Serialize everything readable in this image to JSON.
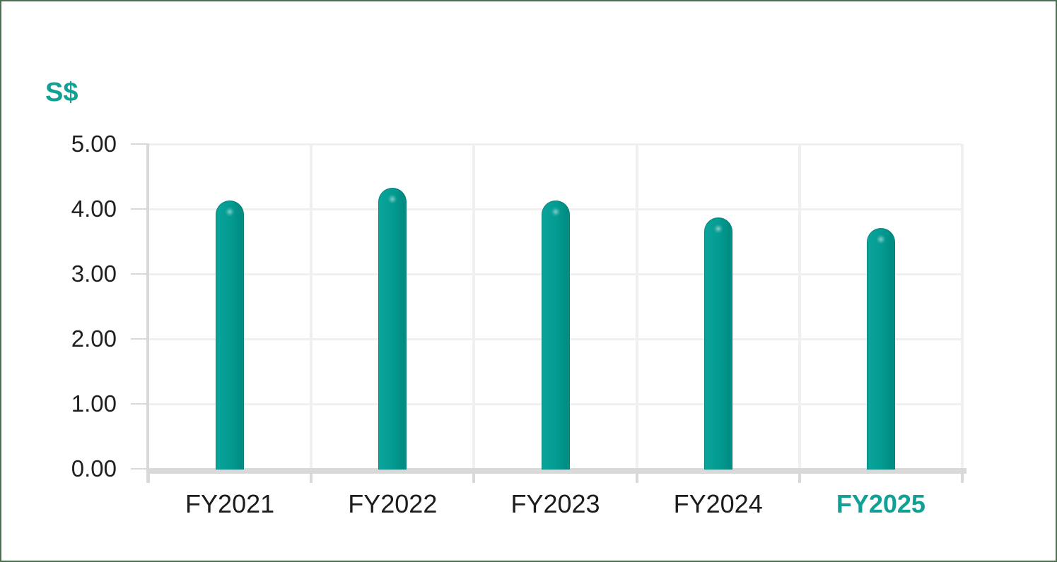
{
  "chart_data": {
    "type": "bar",
    "title": "",
    "y_axis_title": "S$",
    "categories": [
      "FY2021",
      "FY2022",
      "FY2023",
      "FY2024",
      "FY2025"
    ],
    "values": [
      4.14,
      4.34,
      4.14,
      3.88,
      3.72
    ],
    "highlighted_category": "FY2025",
    "ylim": [
      0,
      5
    ],
    "y_tick_step": 1,
    "y_tick_labels": [
      "0.00",
      "1.00",
      "2.00",
      "3.00",
      "4.00",
      "5.00"
    ],
    "grid": true,
    "legend": "none",
    "colors": {
      "bar": "#049c92",
      "accent_text": "#11a096",
      "label_text": "#1c1c1c",
      "gridline": "#f0f0f0",
      "axis": "#d9d9d9",
      "frame_border": "#4a7251",
      "background": "#ffffff"
    }
  }
}
